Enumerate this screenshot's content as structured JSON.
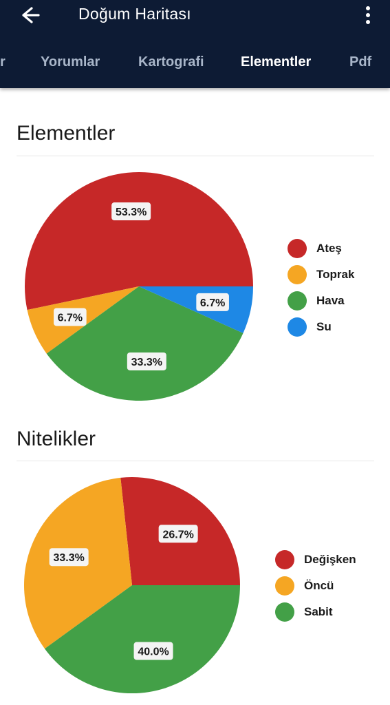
{
  "header": {
    "title": "Doğum Haritası",
    "back_icon": "arrow-left-icon",
    "menu_icon": "more-vertical-icon"
  },
  "tabs": [
    {
      "label": "r",
      "active": false
    },
    {
      "label": "Yorumlar",
      "active": false
    },
    {
      "label": "Kartografi",
      "active": false
    },
    {
      "label": "Elementler",
      "active": true
    },
    {
      "label": "Pdf",
      "active": false
    }
  ],
  "sections": {
    "elements_title": "Elementler",
    "qualities_title": "Nitelikler"
  },
  "colors": {
    "appbar": "#0d1b34",
    "red": "#c62828",
    "orange": "#f5a623",
    "green": "#43a047",
    "blue": "#1e88e5"
  },
  "chart_data": [
    {
      "type": "pie",
      "title": "Elementler",
      "legend_position": "right",
      "series": [
        {
          "name": "Ateş",
          "value": 53.3,
          "label": "53.3%",
          "color": "#c62828"
        },
        {
          "name": "Toprak",
          "value": 6.7,
          "label": "6.7%",
          "color": "#f5a623"
        },
        {
          "name": "Hava",
          "value": 33.3,
          "label": "33.3%",
          "color": "#43a047"
        },
        {
          "name": "Su",
          "value": 6.7,
          "label": "6.7%",
          "color": "#1e88e5"
        }
      ]
    },
    {
      "type": "pie",
      "title": "Nitelikler",
      "legend_position": "right",
      "series": [
        {
          "name": "Değişken",
          "value": 26.7,
          "label": "26.7%",
          "color": "#c62828"
        },
        {
          "name": "Öncü",
          "value": 33.3,
          "label": "33.3%",
          "color": "#f5a623"
        },
        {
          "name": "Sabit",
          "value": 40.0,
          "label": "40.0%",
          "color": "#43a047"
        }
      ]
    }
  ]
}
